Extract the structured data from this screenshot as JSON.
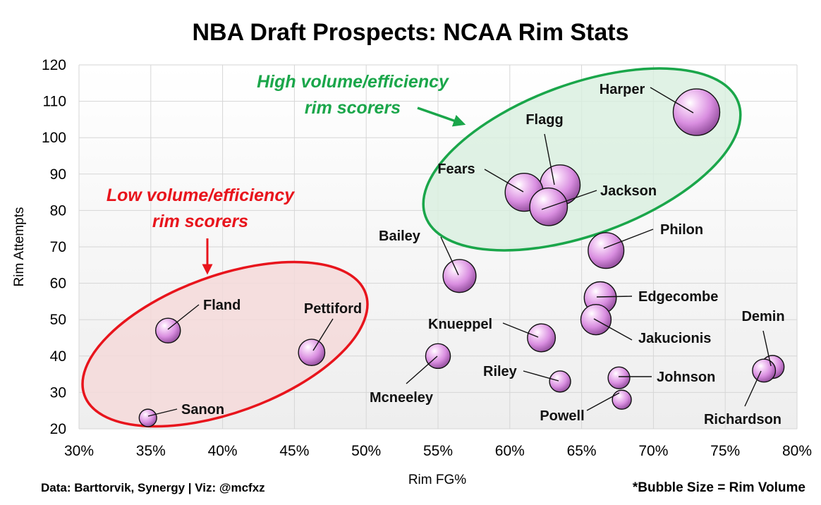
{
  "chart_data": {
    "type": "scatter",
    "title": "NBA Draft Prospects: NCAA Rim Stats",
    "xlabel": "Rim FG%",
    "ylabel": "Rim Attempts",
    "xlim": [
      30,
      80
    ],
    "ylim": [
      20,
      120
    ],
    "x_ticks": [
      "30%",
      "35%",
      "40%",
      "45%",
      "50%",
      "55%",
      "60%",
      "65%",
      "70%",
      "75%",
      "80%"
    ],
    "y_ticks": [
      "20",
      "30",
      "40",
      "50",
      "60",
      "70",
      "80",
      "90",
      "100",
      "110",
      "120"
    ],
    "grid": true,
    "bubble_color": "#d98ee0",
    "size_encoding": "Rim Volume",
    "points": [
      {
        "name": "Harper",
        "x": 73.0,
        "y": 107,
        "size": 78
      },
      {
        "name": "Flagg",
        "x": 63.5,
        "y": 87,
        "size": 58
      },
      {
        "name": "Fears",
        "x": 61.0,
        "y": 85,
        "size": 52
      },
      {
        "name": "Jackson",
        "x": 62.7,
        "y": 81,
        "size": 51
      },
      {
        "name": "Philon",
        "x": 66.7,
        "y": 69,
        "size": 46
      },
      {
        "name": "Bailey",
        "x": 56.5,
        "y": 62,
        "size": 39
      },
      {
        "name": "Edgecombe",
        "x": 66.3,
        "y": 56,
        "size": 37
      },
      {
        "name": "Jakucionis",
        "x": 66.0,
        "y": 50,
        "size": 33
      },
      {
        "name": "Knueppel",
        "x": 62.2,
        "y": 45,
        "size": 28
      },
      {
        "name": "Pettiford",
        "x": 46.2,
        "y": 41,
        "size": 25
      },
      {
        "name": "Mcneeley",
        "x": 55.0,
        "y": 40,
        "size": 22
      },
      {
        "name": "Fland",
        "x": 36.2,
        "y": 47,
        "size": 22
      },
      {
        "name": "Demin",
        "x": 78.3,
        "y": 37,
        "size": 19
      },
      {
        "name": "Richardson",
        "x": 77.7,
        "y": 36,
        "size": 19
      },
      {
        "name": "Johnson",
        "x": 67.6,
        "y": 34,
        "size": 17
      },
      {
        "name": "Riley",
        "x": 63.5,
        "y": 33,
        "size": 16
      },
      {
        "name": "Powell",
        "x": 67.8,
        "y": 28,
        "size": 13
      },
      {
        "name": "Sanon",
        "x": 34.8,
        "y": 23,
        "size": 11
      }
    ],
    "annotations": [
      {
        "text_line1": "High volume/efficiency",
        "text_line2": "rim scorers",
        "color": "#1aa64a"
      },
      {
        "text_line1": "Low volume/efficiency",
        "text_line2": "rim scorers",
        "color": "#e8141c"
      }
    ]
  },
  "footer": {
    "source": "Data: Barttorvik, Synergy | Viz: @mcfxz",
    "note": "*Bubble Size = Rim Volume"
  }
}
